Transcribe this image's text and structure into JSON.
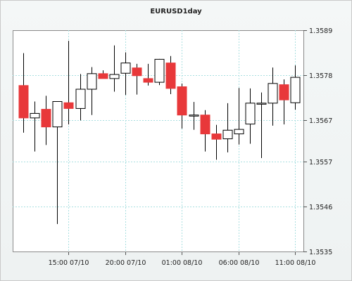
{
  "chart_data": {
    "type": "candlestick",
    "title": "EURUSD1day",
    "xlabel": "",
    "ylabel": "",
    "ylim": [
      1.3535,
      1.3589
    ],
    "y_ticks": [
      "1.3589",
      "1.3578",
      "1.3567",
      "1.3557",
      "1.3546",
      "1.3535"
    ],
    "x_ticks": [
      {
        "label": "15:00 07/10",
        "index": 4
      },
      {
        "label": "20:00 07/10",
        "index": 9
      },
      {
        "label": "01:00 08/10",
        "index": 14
      },
      {
        "label": "06:00 08/10",
        "index": 19
      },
      {
        "label": "11:00 08/10",
        "index": 24
      }
    ],
    "grid": true,
    "colors": {
      "bull": "#ffffff",
      "bear": "#e8383a",
      "outline": "#000000",
      "grid": "#a9dfe0"
    },
    "candles": [
      {
        "open": 1.35755,
        "high": 1.35834,
        "low": 1.3564,
        "close": 1.35676
      },
      {
        "open": 1.35676,
        "high": 1.35716,
        "low": 1.35594,
        "close": 1.35687
      },
      {
        "open": 1.35697,
        "high": 1.3573,
        "low": 1.3561,
        "close": 1.35654
      },
      {
        "open": 1.35654,
        "high": 1.35713,
        "low": 1.35417,
        "close": 1.35716
      },
      {
        "open": 1.35713,
        "high": 1.35864,
        "low": 1.3566,
        "close": 1.35699
      },
      {
        "open": 1.35699,
        "high": 1.35783,
        "low": 1.3567,
        "close": 1.35746
      },
      {
        "open": 1.35746,
        "high": 1.358,
        "low": 1.35683,
        "close": 1.35784
      },
      {
        "open": 1.35784,
        "high": 1.35792,
        "low": 1.35772,
        "close": 1.35772
      },
      {
        "open": 1.35772,
        "high": 1.35853,
        "low": 1.3574,
        "close": 1.35782
      },
      {
        "open": 1.35785,
        "high": 1.35836,
        "low": 1.35732,
        "close": 1.3581
      },
      {
        "open": 1.35798,
        "high": 1.35808,
        "low": 1.35733,
        "close": 1.35779
      },
      {
        "open": 1.35772,
        "high": 1.35808,
        "low": 1.35755,
        "close": 1.35763
      },
      {
        "open": 1.35763,
        "high": 1.3582,
        "low": 1.35756,
        "close": 1.35819
      },
      {
        "open": 1.3581,
        "high": 1.35827,
        "low": 1.35734,
        "close": 1.35748
      },
      {
        "open": 1.35752,
        "high": 1.3576,
        "low": 1.3565,
        "close": 1.35683
      },
      {
        "open": 1.35683,
        "high": 1.35715,
        "low": 1.35647,
        "close": 1.35683
      },
      {
        "open": 1.35683,
        "high": 1.35695,
        "low": 1.35594,
        "close": 1.35637
      },
      {
        "open": 1.35637,
        "high": 1.35659,
        "low": 1.35574,
        "close": 1.35624
      },
      {
        "open": 1.35625,
        "high": 1.35712,
        "low": 1.35592,
        "close": 1.35646
      },
      {
        "open": 1.35637,
        "high": 1.35749,
        "low": 1.35611,
        "close": 1.35648
      },
      {
        "open": 1.35661,
        "high": 1.35748,
        "low": 1.35613,
        "close": 1.35712
      },
      {
        "open": 1.35712,
        "high": 1.35738,
        "low": 1.35578,
        "close": 1.35712
      },
      {
        "open": 1.35712,
        "high": 1.35799,
        "low": 1.35657,
        "close": 1.3576
      },
      {
        "open": 1.35757,
        "high": 1.3577,
        "low": 1.3566,
        "close": 1.3572
      },
      {
        "open": 1.35713,
        "high": 1.35804,
        "low": 1.35696,
        "close": 1.35775
      }
    ]
  }
}
